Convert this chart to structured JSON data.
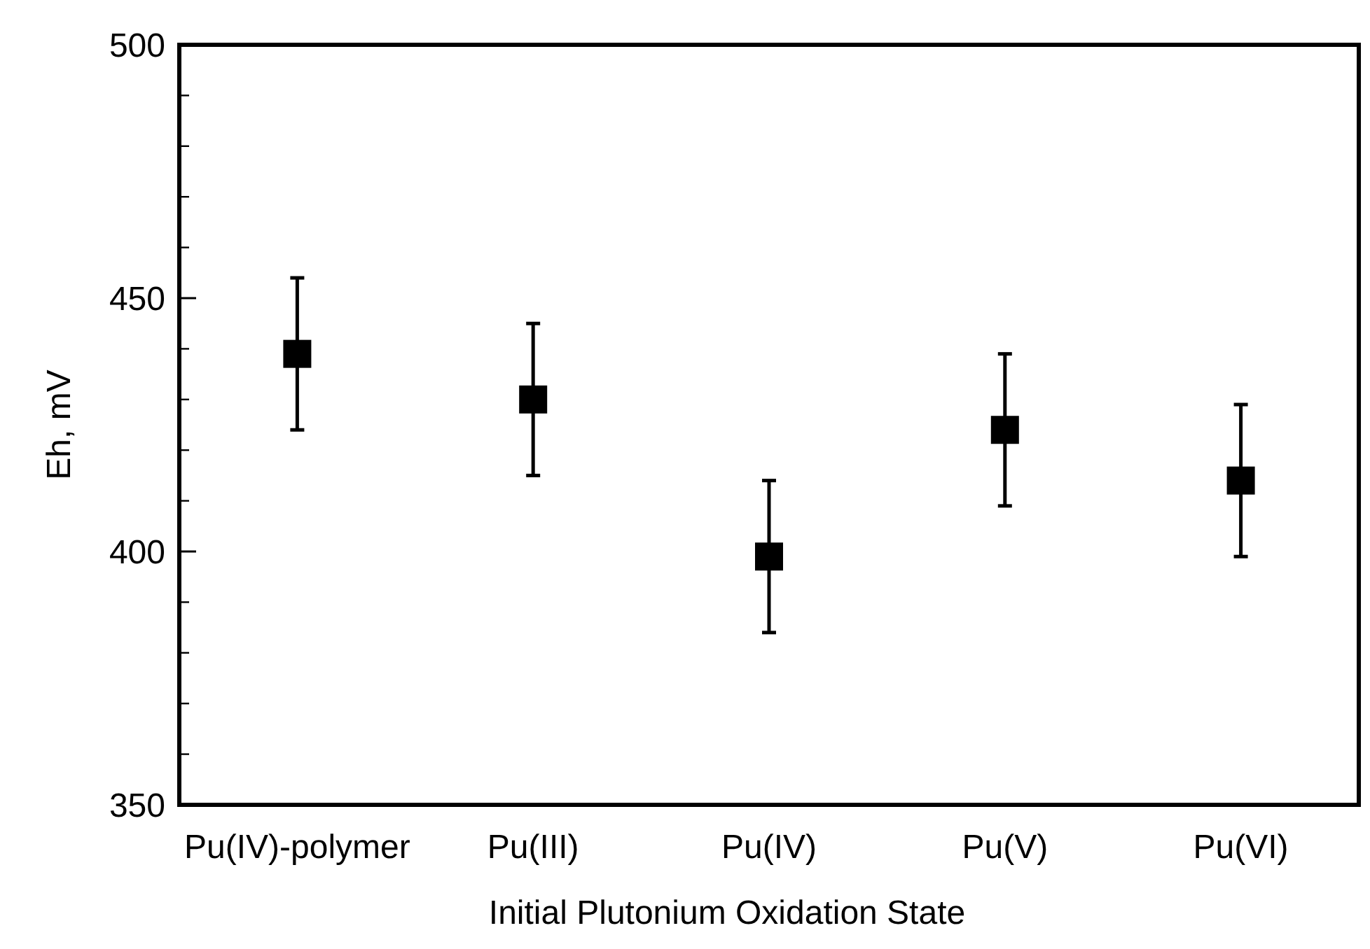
{
  "chart_data": {
    "type": "scatter",
    "xlabel": "Initial Plutonium Oxidation State",
    "ylabel": "Eh, mV",
    "categories": [
      "Pu(IV)-polymer",
      "Pu(III)",
      "Pu(IV)",
      "Pu(V)",
      "Pu(VI)"
    ],
    "series": [
      {
        "color": "#000000",
        "values": [
          439,
          430,
          399,
          424,
          414
        ],
        "errors": [
          15,
          15,
          15,
          15,
          15
        ]
      }
    ],
    "ylim": [
      350,
      500
    ],
    "yticks": [
      350,
      400,
      450,
      500
    ],
    "marker": "square",
    "grid": false
  }
}
